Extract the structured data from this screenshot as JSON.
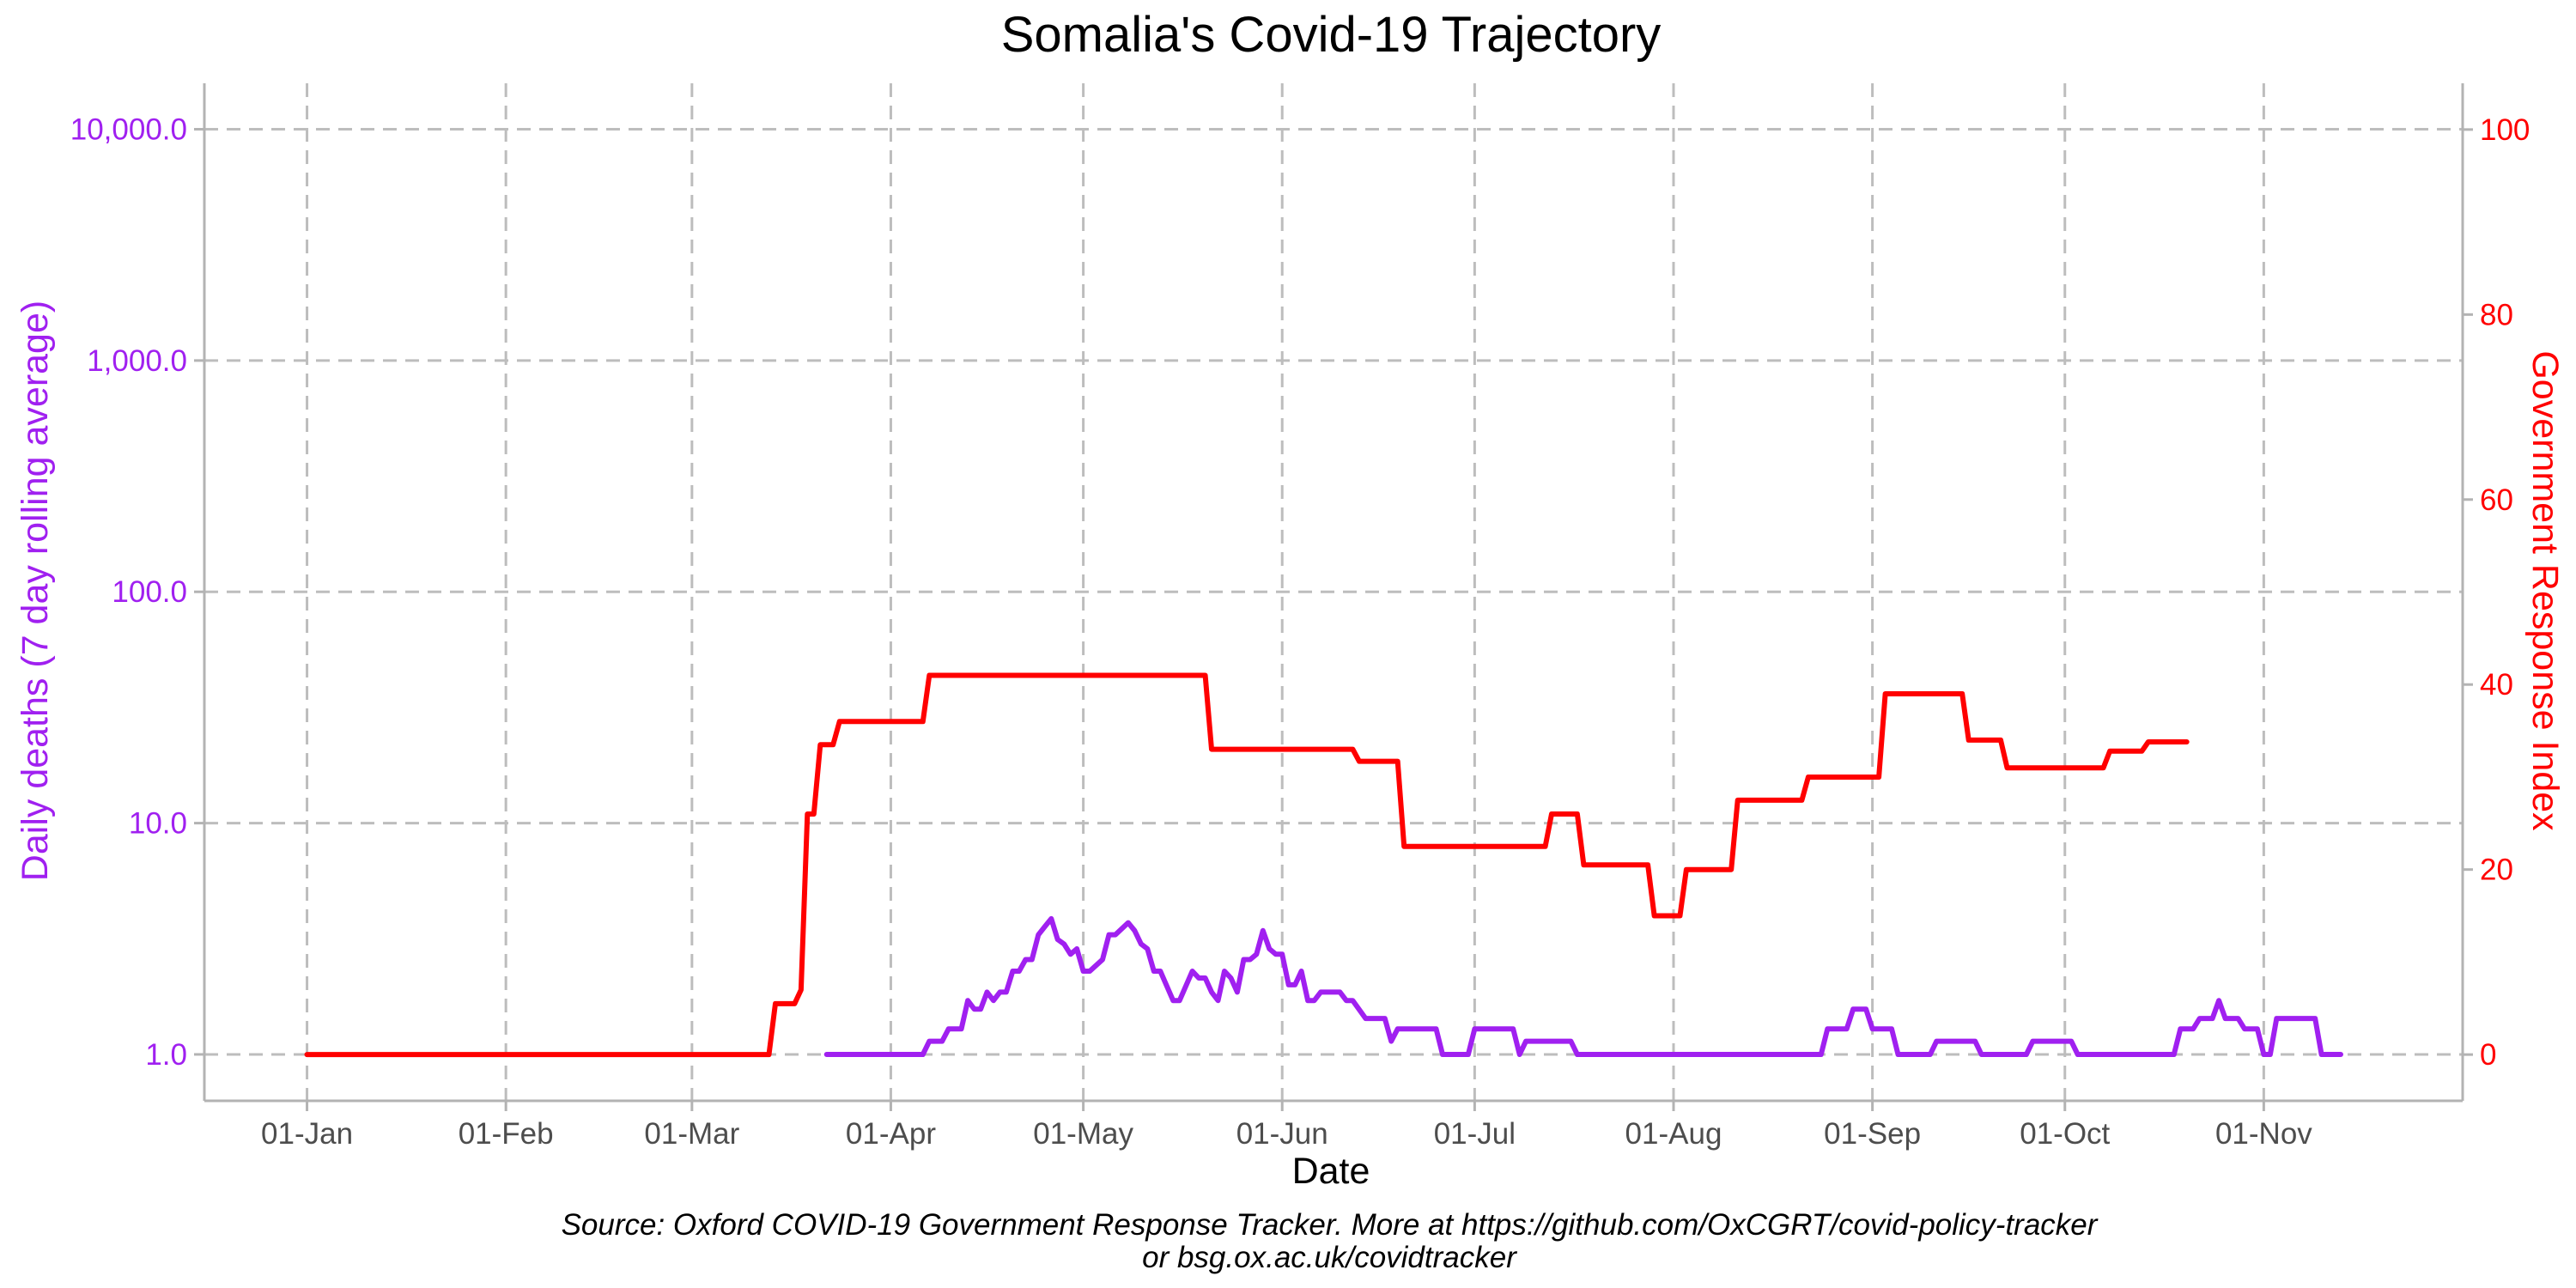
{
  "chart_data": {
    "type": "line",
    "title": "Somalia's Covid-19 Trajectory",
    "xlabel": "Date",
    "ylabel_left": "Daily deaths (7 day rolling average)",
    "ylabel_right": "Government Response Index",
    "x_tick_labels": [
      "01-Jan",
      "01-Feb",
      "01-Mar",
      "01-Apr",
      "01-May",
      "01-Jun",
      "01-Jul",
      "01-Aug",
      "01-Sep",
      "01-Oct",
      "01-Nov"
    ],
    "x_tick_days": [
      0,
      31,
      60,
      91,
      121,
      152,
      182,
      213,
      244,
      274,
      305
    ],
    "x_range_days": [
      -16,
      336
    ],
    "y_left": {
      "scale": "log10",
      "ticks": [
        1,
        10,
        100,
        1000,
        10000
      ],
      "tick_labels": [
        "1.0",
        "10.0",
        "100.0",
        "1,000.0",
        "10,000.0"
      ],
      "range": [
        0.63,
        15800
      ]
    },
    "y_right": {
      "scale": "linear",
      "ticks": [
        0,
        20,
        40,
        60,
        80,
        100
      ],
      "tick_labels": [
        "0",
        "20",
        "40",
        "60",
        "80",
        "100"
      ],
      "range": [
        -5,
        105
      ]
    },
    "grid": true,
    "colors": {
      "deaths": "#a020f0",
      "response": "#ff0000"
    },
    "series": [
      {
        "axis": "left",
        "color": "#a020f0",
        "points": [
          [
            81,
            1
          ],
          [
            96,
            1
          ],
          [
            97,
            1.14
          ],
          [
            99,
            1.14
          ],
          [
            100,
            1.29
          ],
          [
            102,
            1.29
          ],
          [
            103,
            1.71
          ],
          [
            104,
            1.57
          ],
          [
            105,
            1.57
          ],
          [
            106,
            1.86
          ],
          [
            107,
            1.71
          ],
          [
            108,
            1.86
          ],
          [
            109,
            1.86
          ],
          [
            110,
            2.29
          ],
          [
            111,
            2.29
          ],
          [
            112,
            2.57
          ],
          [
            113,
            2.57
          ],
          [
            114,
            3.29
          ],
          [
            115,
            3.57
          ],
          [
            116,
            3.86
          ],
          [
            117,
            3.14
          ],
          [
            118,
            3.0
          ],
          [
            119,
            2.71
          ],
          [
            120,
            2.86
          ],
          [
            121,
            2.29
          ],
          [
            122,
            2.29
          ],
          [
            124,
            2.57
          ],
          [
            125,
            3.29
          ],
          [
            126,
            3.29
          ],
          [
            128,
            3.71
          ],
          [
            129,
            3.43
          ],
          [
            130,
            3.0
          ],
          [
            131,
            2.86
          ],
          [
            132,
            2.29
          ],
          [
            133,
            2.29
          ],
          [
            135,
            1.71
          ],
          [
            136,
            1.71
          ],
          [
            138,
            2.29
          ],
          [
            139,
            2.14
          ],
          [
            140,
            2.14
          ],
          [
            141,
            1.86
          ],
          [
            142,
            1.71
          ],
          [
            143,
            2.29
          ],
          [
            144,
            2.14
          ],
          [
            145,
            1.86
          ],
          [
            146,
            2.57
          ],
          [
            147,
            2.57
          ],
          [
            148,
            2.71
          ],
          [
            149,
            3.43
          ],
          [
            150,
            2.86
          ],
          [
            151,
            2.71
          ],
          [
            152,
            2.71
          ],
          [
            153,
            2.0
          ],
          [
            154,
            2.0
          ],
          [
            155,
            2.29
          ],
          [
            156,
            1.71
          ],
          [
            157,
            1.71
          ],
          [
            158,
            1.86
          ],
          [
            161,
            1.86
          ],
          [
            162,
            1.71
          ],
          [
            163,
            1.71
          ],
          [
            165,
            1.43
          ],
          [
            168,
            1.43
          ],
          [
            169,
            1.14
          ],
          [
            170,
            1.29
          ],
          [
            176,
            1.29
          ],
          [
            177,
            1
          ],
          [
            181,
            1
          ],
          [
            182,
            1.29
          ],
          [
            188,
            1.29
          ],
          [
            189,
            1
          ],
          [
            190,
            1.14
          ],
          [
            197,
            1.14
          ],
          [
            198,
            1
          ],
          [
            236,
            1
          ],
          [
            237,
            1.29
          ],
          [
            240,
            1.29
          ],
          [
            241,
            1.57
          ],
          [
            243,
            1.57
          ],
          [
            244,
            1.29
          ],
          [
            247,
            1.29
          ],
          [
            248,
            1
          ],
          [
            253,
            1
          ],
          [
            254,
            1.14
          ],
          [
            260,
            1.14
          ],
          [
            261,
            1
          ],
          [
            268,
            1
          ],
          [
            269,
            1.14
          ],
          [
            275,
            1.14
          ],
          [
            276,
            1
          ],
          [
            291,
            1
          ],
          [
            292,
            1.29
          ],
          [
            294,
            1.29
          ],
          [
            295,
            1.43
          ],
          [
            297,
            1.43
          ],
          [
            298,
            1.71
          ],
          [
            299,
            1.43
          ],
          [
            301,
            1.43
          ],
          [
            302,
            1.29
          ],
          [
            304,
            1.29
          ],
          [
            305,
            1
          ],
          [
            306,
            1
          ],
          [
            307,
            1.43
          ],
          [
            313,
            1.43
          ],
          [
            314,
            1
          ],
          [
            317,
            1
          ]
        ]
      },
      {
        "axis": "right",
        "color": "#ff0000",
        "points": [
          [
            0,
            0
          ],
          [
            72,
            0
          ],
          [
            73,
            5.5
          ],
          [
            76,
            5.5
          ],
          [
            77,
            7
          ],
          [
            78,
            26
          ],
          [
            79,
            26
          ],
          [
            80,
            33.5
          ],
          [
            82,
            33.5
          ],
          [
            83,
            36
          ],
          [
            96,
            36
          ],
          [
            97,
            41
          ],
          [
            140,
            41
          ],
          [
            141,
            33
          ],
          [
            163,
            33
          ],
          [
            164,
            31.7
          ],
          [
            170,
            31.7
          ],
          [
            171,
            22.5
          ],
          [
            193,
            22.5
          ],
          [
            194,
            26
          ],
          [
            198,
            26
          ],
          [
            199,
            20.5
          ],
          [
            209,
            20.5
          ],
          [
            210,
            15
          ],
          [
            214,
            15
          ],
          [
            215,
            20
          ],
          [
            222,
            20
          ],
          [
            223,
            27.5
          ],
          [
            233,
            27.5
          ],
          [
            234,
            30
          ],
          [
            245,
            30
          ],
          [
            246,
            39
          ],
          [
            258,
            39
          ],
          [
            259,
            34
          ],
          [
            264,
            34
          ],
          [
            265,
            31
          ],
          [
            280,
            31
          ],
          [
            281,
            32.8
          ],
          [
            286,
            32.8
          ],
          [
            287,
            33.8
          ],
          [
            293,
            33.8
          ]
        ]
      }
    ],
    "source_lines": [
      "Source: Oxford COVID-19 Government Response Tracker. More at https://github.com/OxCGRT/covid-policy-tracker",
      "or bsg.ox.ac.uk/covidtracker"
    ]
  }
}
